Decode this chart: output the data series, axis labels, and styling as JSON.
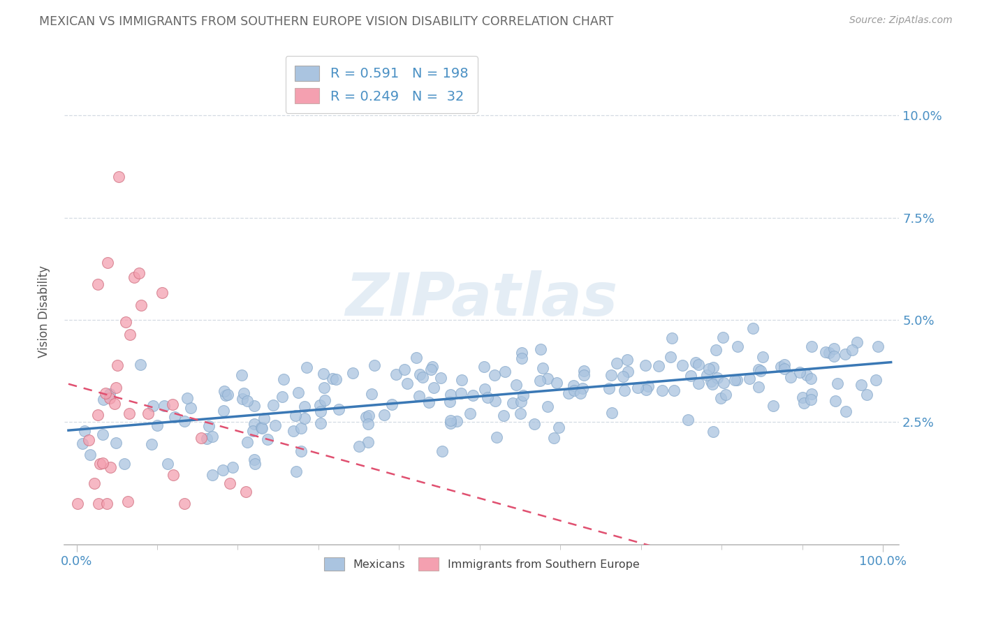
{
  "title": "MEXICAN VS IMMIGRANTS FROM SOUTHERN EUROPE VISION DISABILITY CORRELATION CHART",
  "source": "Source: ZipAtlas.com",
  "ylabel": "Vision Disability",
  "blue_R": 0.591,
  "blue_N": 198,
  "pink_R": 0.249,
  "pink_N": 32,
  "blue_color": "#aac4e0",
  "pink_color": "#f4a0b0",
  "blue_line_color": "#3a78b5",
  "pink_line_color": "#e05070",
  "watermark": "ZIPatlas",
  "bg_color": "#ffffff",
  "grid_color": "#d0d8e0",
  "title_color": "#666666",
  "label_color": "#4a90c4",
  "axis_color": "#bbbbbb"
}
